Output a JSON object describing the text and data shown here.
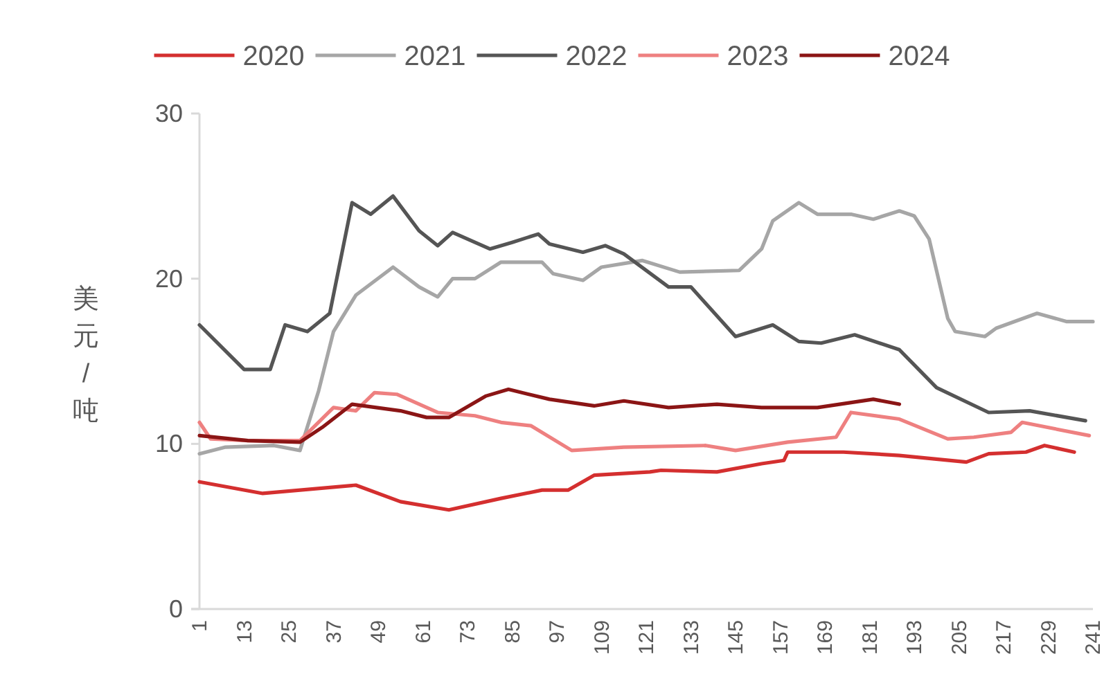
{
  "chart_data": {
    "type": "line",
    "ylabel": "美元/吨",
    "xlim": [
      1,
      241
    ],
    "xticks": [
      1,
      13,
      25,
      37,
      49,
      61,
      73,
      85,
      97,
      109,
      121,
      133,
      145,
      157,
      169,
      181,
      193,
      205,
      217,
      229,
      241
    ],
    "ylim": [
      0,
      30
    ],
    "yticks": [
      0,
      10,
      20,
      30
    ],
    "legend": "top",
    "line_style": "solid",
    "series": [
      {
        "name": "2020",
        "color": "#d42f2f",
        "x": [
          1,
          18,
          43,
          55,
          68,
          82,
          93,
          100,
          107,
          122,
          125,
          140,
          152,
          158,
          159,
          174,
          189,
          207,
          213,
          223,
          228,
          236
        ],
        "values": [
          7.7,
          7.0,
          7.5,
          6.5,
          6.0,
          6.7,
          7.2,
          7.2,
          8.1,
          8.3,
          8.4,
          8.3,
          8.8,
          9.0,
          9.5,
          9.5,
          9.3,
          8.9,
          9.4,
          9.5,
          9.9,
          9.5
        ]
      },
      {
        "name": "2021",
        "color": "#a6a6a6",
        "x": [
          1,
          8,
          21,
          28,
          33,
          37,
          43,
          53,
          60,
          65,
          69,
          75,
          82,
          93,
          96,
          104,
          109,
          120,
          130,
          146,
          152,
          155,
          162,
          167,
          176,
          182,
          189,
          193,
          197,
          202,
          204,
          212,
          215,
          226,
          234,
          241
        ],
        "values": [
          9.4,
          9.8,
          9.9,
          9.6,
          13.2,
          16.8,
          19.0,
          20.7,
          19.5,
          18.9,
          20.0,
          20.0,
          21.0,
          21.0,
          20.3,
          19.9,
          20.7,
          21.1,
          20.4,
          20.5,
          21.8,
          23.5,
          24.6,
          23.9,
          23.9,
          23.6,
          24.1,
          23.8,
          22.4,
          17.6,
          16.8,
          16.5,
          17.0,
          17.9,
          17.4,
          17.4
        ]
      },
      {
        "name": "2022",
        "color": "#555555",
        "x": [
          1,
          13,
          20,
          24,
          30,
          36,
          42,
          47,
          53,
          60,
          65,
          69,
          79,
          85,
          92,
          95,
          104,
          110,
          115,
          127,
          133,
          145,
          155,
          162,
          168,
          177,
          189,
          199,
          213,
          224,
          239
        ],
        "values": [
          17.2,
          14.5,
          14.5,
          17.2,
          16.8,
          17.9,
          24.6,
          23.9,
          25.0,
          22.9,
          22.0,
          22.8,
          21.8,
          22.2,
          22.7,
          22.1,
          21.6,
          22.0,
          21.5,
          19.5,
          19.5,
          16.5,
          17.2,
          16.2,
          16.1,
          16.6,
          15.7,
          13.4,
          11.9,
          12.0,
          11.4
        ]
      },
      {
        "name": "2023",
        "color": "#ee8080",
        "x": [
          1,
          4,
          14,
          28,
          37,
          43,
          48,
          54,
          65,
          75,
          82,
          90,
          101,
          115,
          137,
          145,
          159,
          172,
          176,
          189,
          202,
          209,
          219,
          222,
          240
        ],
        "values": [
          11.3,
          10.3,
          10.2,
          10.2,
          12.2,
          12.0,
          13.1,
          13.0,
          11.9,
          11.7,
          11.3,
          11.1,
          9.6,
          9.8,
          9.9,
          9.6,
          10.1,
          10.4,
          11.9,
          11.5,
          10.3,
          10.4,
          10.7,
          11.3,
          10.5
        ]
      },
      {
        "name": "2024",
        "color": "#8b1515",
        "x": [
          1,
          14,
          28,
          34,
          42,
          55,
          62,
          68,
          78,
          84,
          95,
          107,
          115,
          127,
          140,
          152,
          167,
          182,
          189
        ],
        "values": [
          10.5,
          10.2,
          10.1,
          11.0,
          12.4,
          12.0,
          11.6,
          11.6,
          12.9,
          13.3,
          12.7,
          12.3,
          12.6,
          12.2,
          12.4,
          12.2,
          12.2,
          12.7,
          12.4
        ]
      }
    ]
  }
}
